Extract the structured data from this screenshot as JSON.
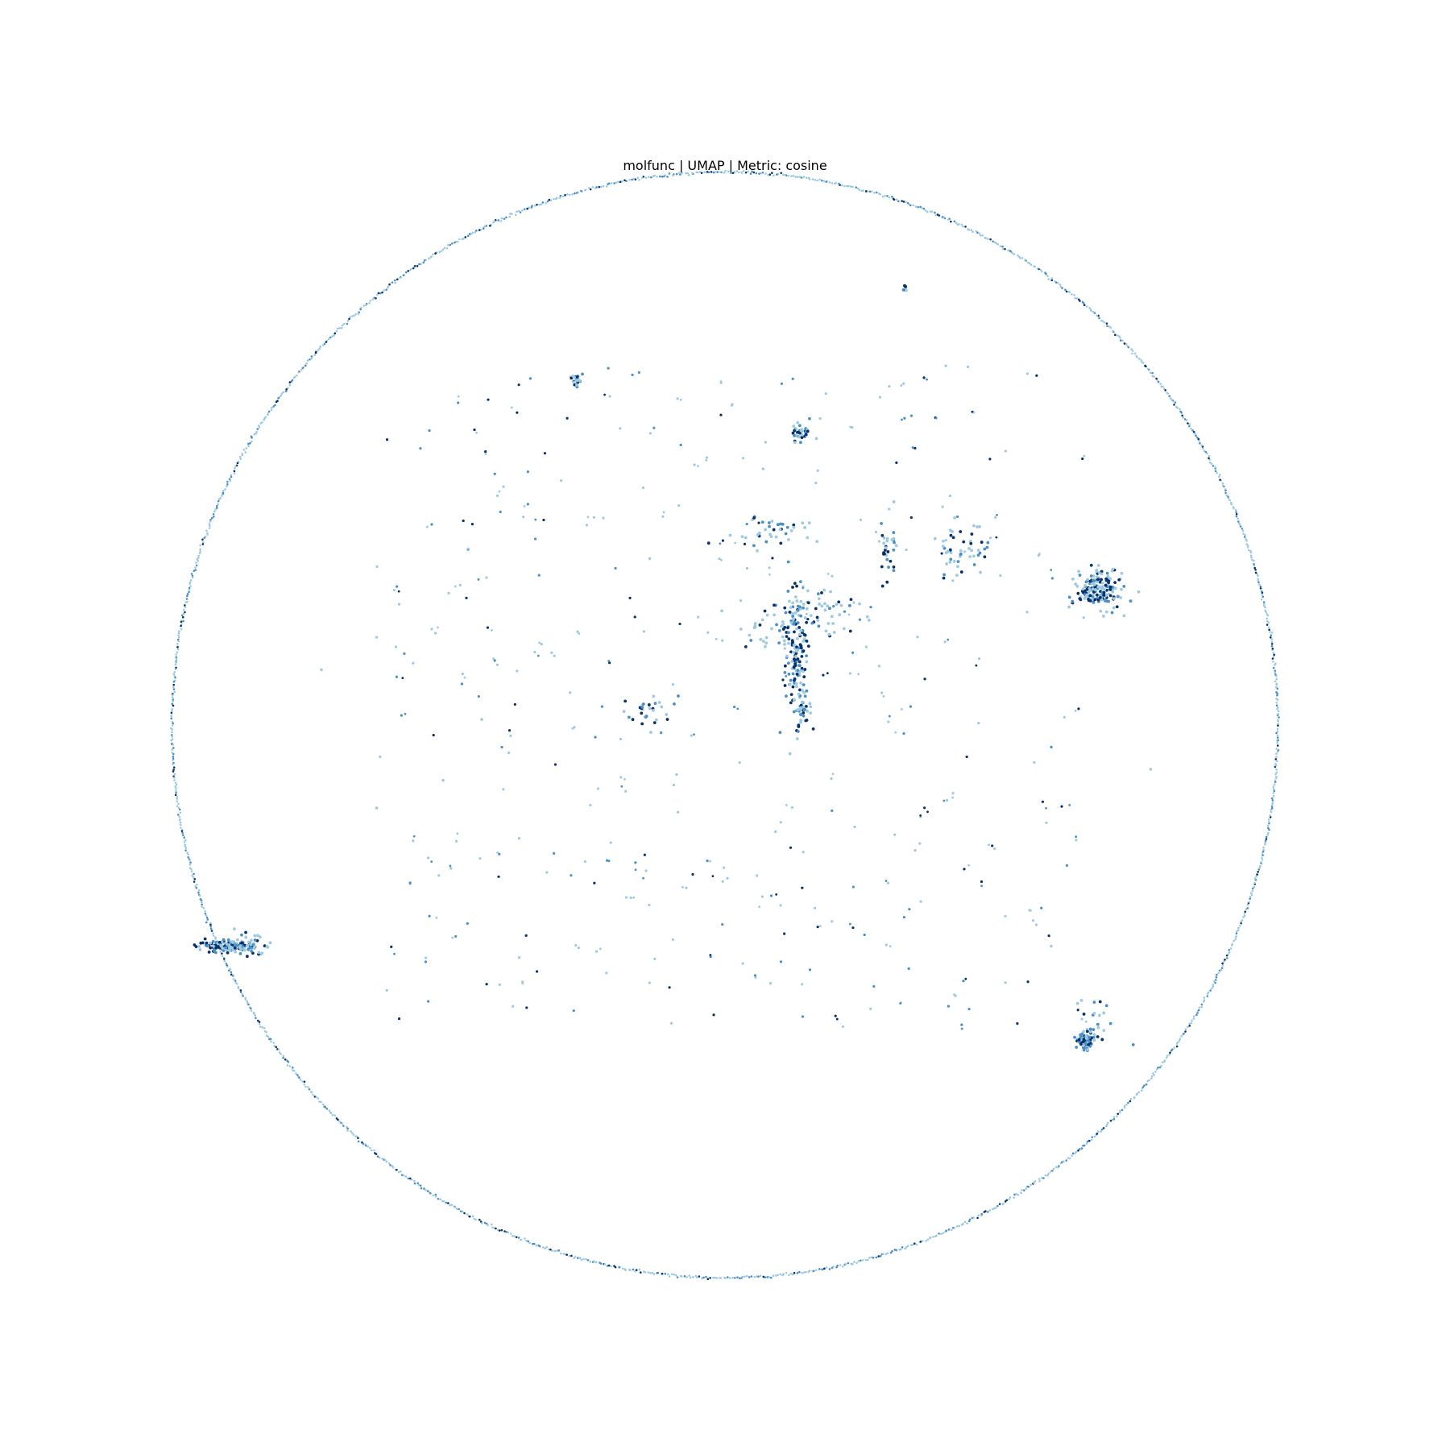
{
  "chart_data": {
    "type": "scatter",
    "title": "molfunc | UMAP | Metric: cosine",
    "xlabel": "",
    "ylabel": "",
    "axes_visible": false,
    "grid": false,
    "legend": "none",
    "xlim": [
      -10.2,
      10.2
    ],
    "ylim": [
      -10.2,
      10.2
    ],
    "colors": {
      "light": "#9ecae1",
      "mid": "#4a90c8",
      "dark": "#08306b"
    },
    "point_count_estimate": 5000,
    "ring": {
      "center": [
        0,
        0
      ],
      "radius": 10.0,
      "density_shade": "light"
    },
    "clusters": [
      {
        "name": "",
        "x": 6.75,
        "y": 2.45,
        "spread_x": 0.22,
        "spread_y": 0.18,
        "count": 180,
        "dark_fraction": 0.35
      },
      {
        "name": "",
        "x": -9.0,
        "y": -4.0,
        "spread_x": 0.25,
        "spread_y": 0.05,
        "count": 120,
        "dark_fraction": 0.35
      },
      {
        "name": "",
        "x": -8.6,
        "y": -4.0,
        "spread_x": 0.2,
        "spread_y": 0.12,
        "count": 40,
        "dark_fraction": 0.2
      },
      {
        "name": "",
        "x": 6.5,
        "y": -5.7,
        "spread_x": 0.08,
        "spread_y": 0.08,
        "count": 70,
        "dark_fraction": 0.4
      },
      {
        "name": "",
        "x": 6.7,
        "y": -5.4,
        "spread_x": 0.25,
        "spread_y": 0.25,
        "count": 25,
        "dark_fraction": 0.2
      },
      {
        "name": "",
        "x": -2.7,
        "y": 6.25,
        "spread_x": 0.05,
        "spread_y": 0.05,
        "count": 22,
        "dark_fraction": 0.4
      },
      {
        "name": "",
        "x": 1.38,
        "y": 5.3,
        "spread_x": 0.12,
        "spread_y": 0.08,
        "count": 35,
        "dark_fraction": 0.35
      },
      {
        "name": "",
        "x": 3.25,
        "y": 7.9,
        "spread_x": 0.03,
        "spread_y": 0.03,
        "count": 8,
        "dark_fraction": 0.5
      },
      {
        "name": "",
        "x": 1.3,
        "y": 1.3,
        "spread_x": 0.1,
        "spread_y": 0.7,
        "count": 150,
        "dark_fraction": 0.4
      },
      {
        "name": "",
        "x": 1.0,
        "y": 1.7,
        "spread_x": 0.3,
        "spread_y": 0.25,
        "count": 50,
        "dark_fraction": 0.25
      },
      {
        "name": "",
        "x": 1.9,
        "y": 2.0,
        "spread_x": 0.25,
        "spread_y": 0.25,
        "count": 35,
        "dark_fraction": 0.2
      },
      {
        "name": "",
        "x": 1.4,
        "y": 0.25,
        "spread_x": 0.08,
        "spread_y": 0.08,
        "count": 25,
        "dark_fraction": 0.3
      },
      {
        "name": "",
        "x": 4.3,
        "y": 3.15,
        "spread_x": 0.25,
        "spread_y": 0.25,
        "count": 50,
        "dark_fraction": 0.3
      },
      {
        "name": "",
        "x": 0.9,
        "y": 3.5,
        "spread_x": 0.35,
        "spread_y": 0.15,
        "count": 40,
        "dark_fraction": 0.2
      },
      {
        "name": "",
        "x": 2.95,
        "y": 3.2,
        "spread_x": 0.08,
        "spread_y": 0.3,
        "count": 30,
        "dark_fraction": 0.35
      },
      {
        "name": "",
        "x": -1.4,
        "y": 0.2,
        "spread_x": 0.25,
        "spread_y": 0.15,
        "count": 30,
        "dark_fraction": 0.3
      }
    ],
    "scatter_field": {
      "x_range": [
        -6.5,
        6.5
      ],
      "y_range": [
        -5.5,
        6.5
      ],
      "count": 330,
      "dark_fraction": 0.2
    },
    "outliers": [
      {
        "x": 7.7,
        "y": -0.8
      },
      {
        "x": 5.9,
        "y": -4.0
      },
      {
        "x": -4.4,
        "y": 0.1
      },
      {
        "x": -7.3,
        "y": 1.0
      },
      {
        "x": -5.1,
        "y": -1.0
      },
      {
        "x": -6.3,
        "y": -1.5
      }
    ]
  }
}
